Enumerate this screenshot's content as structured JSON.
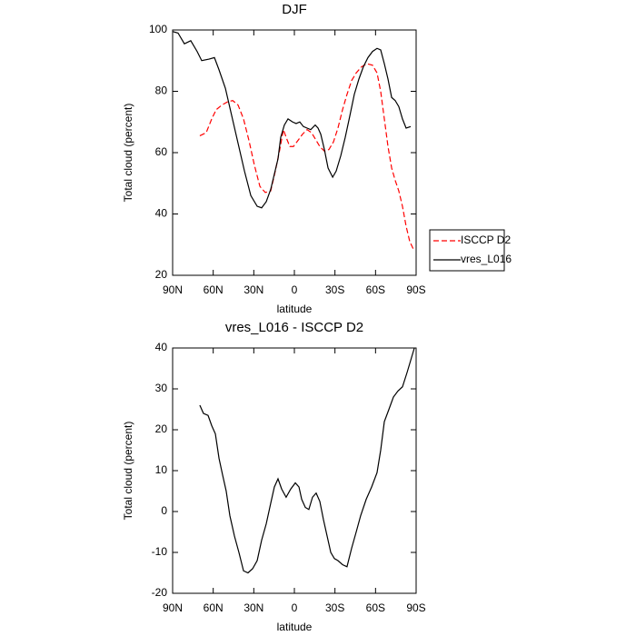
{
  "chart_data": [
    {
      "type": "line",
      "title": "DJF",
      "xlabel": "latitude",
      "ylabel": "Total cloud (percent)",
      "xlim": [
        90,
        -90
      ],
      "xticks": [
        {
          "value": 90,
          "label": "90N"
        },
        {
          "value": 60,
          "label": "60N"
        },
        {
          "value": 30,
          "label": "30N"
        },
        0,
        {
          "value": -30,
          "label": "30S"
        },
        {
          "value": -60,
          "label": "60S"
        },
        {
          "value": -90,
          "label": "90S"
        }
      ],
      "ylim": [
        20,
        100
      ],
      "yticks": [
        20,
        40,
        60,
        80,
        100
      ],
      "legend": "right",
      "series": [
        {
          "name": "ISCCP D2",
          "color": "#ff0000",
          "dashed": true,
          "x": [
            69.9,
            65.2,
            61.1,
            57.8,
            53.7,
            49.7,
            45.6,
            41.6,
            37.6,
            33.6,
            29.6,
            25.5,
            21.5,
            17.5,
            14.1,
            10.8,
            8.1,
            6.1,
            3.4,
            0.7,
            -2.7,
            -6,
            -9.4,
            -12.7,
            -16.1,
            -18.8,
            -22.2,
            -25.5,
            -28.9,
            -32.2,
            -35.6,
            -38.9,
            -42.3,
            -45.7,
            -49.7,
            -53.7,
            -57.8,
            -61.1,
            -63.8,
            -66.5,
            -69.2,
            -71.9,
            -74.5,
            -77.2,
            -79.9,
            -82.6,
            -85.3,
            -88
          ],
          "values": [
            65.5,
            66.5,
            71,
            74,
            75.5,
            76.5,
            77,
            75.5,
            71,
            64,
            56,
            49,
            47,
            47.5,
            54,
            61,
            67.5,
            65,
            62,
            62,
            64,
            66,
            67.5,
            66.5,
            64,
            62,
            60.5,
            61,
            63.5,
            68,
            74,
            79,
            83.5,
            86,
            88,
            89,
            88.5,
            86,
            80,
            71,
            62,
            55,
            51,
            47.5,
            42.5,
            36,
            31,
            28.5
          ]
        },
        {
          "name": "vres_L016",
          "color": "#000000",
          "dashed": false,
          "x": [
            90,
            86,
            81.3,
            76.6,
            71.9,
            68.5,
            63.1,
            59.1,
            55.7,
            51,
            46.3,
            41.6,
            36.9,
            32.2,
            27.5,
            24.2,
            20.8,
            17.5,
            14.8,
            12.1,
            10.1,
            7.4,
            4.7,
            1.3,
            -1.3,
            -4,
            -6.7,
            -9.4,
            -12.1,
            -15.4,
            -17.5,
            -19.5,
            -22.2,
            -24.9,
            -28.3,
            -30.9,
            -34.3,
            -37.6,
            -41,
            -44.3,
            -47.7,
            -51,
            -54.4,
            -57.8,
            -61.1,
            -63.8,
            -66.5,
            -69.2,
            -71.9,
            -74.5,
            -77.2,
            -79.9,
            -82.6,
            -86
          ],
          "values": [
            99.5,
            99,
            95.5,
            96.5,
            93,
            90,
            90.5,
            91,
            87,
            81,
            72,
            63,
            54,
            46,
            42.5,
            42,
            44,
            48,
            53,
            58,
            65,
            69,
            71,
            70,
            69.5,
            70,
            68.5,
            68,
            67.5,
            69,
            68,
            66,
            61,
            55,
            52,
            54,
            59,
            65,
            72,
            79,
            84,
            88,
            91,
            93,
            94,
            93.5,
            89,
            84,
            78,
            77,
            75,
            71,
            68,
            68.5
          ]
        }
      ]
    },
    {
      "type": "line",
      "title": "vres_L016 - ISCCP D2",
      "xlabel": "latitude",
      "ylabel": "Total cloud (percent)",
      "xlim": [
        90,
        -90
      ],
      "xticks": [
        {
          "value": 90,
          "label": "90N"
        },
        {
          "value": 60,
          "label": "60N"
        },
        {
          "value": 30,
          "label": "30N"
        },
        0,
        {
          "value": -30,
          "label": "30S"
        },
        {
          "value": -60,
          "label": "60S"
        },
        {
          "value": -90,
          "label": "90S"
        }
      ],
      "ylim": [
        -20,
        40
      ],
      "yticks": [
        -20,
        -10,
        0,
        10,
        20,
        30,
        40
      ],
      "series": [
        {
          "color": "#000000",
          "dashed": false,
          "x": [
            69.9,
            67.2,
            63.8,
            61.1,
            58.4,
            55.7,
            53.1,
            50.4,
            47.7,
            44.3,
            41,
            37.6,
            34.3,
            30.9,
            27.5,
            24.2,
            20.8,
            17.5,
            14.8,
            12.1,
            9.4,
            6.1,
            2.7,
            -0.7,
            -3.4,
            -5.4,
            -8.1,
            -10.7,
            -13.4,
            -16.1,
            -18.8,
            -21.5,
            -24.2,
            -26.9,
            -29.6,
            -32.2,
            -35.6,
            -38.9,
            -42.3,
            -45.7,
            -49,
            -53.1,
            -57.1,
            -61.1,
            -63.8,
            -66.5,
            -69.9,
            -73.2,
            -76.6,
            -79.9,
            -83.3,
            -86,
            -88.7
          ],
          "values": [
            26,
            24,
            23.5,
            21,
            19,
            13,
            9,
            5,
            -1,
            -6,
            -10,
            -14.5,
            -15,
            -14,
            -12,
            -7,
            -3,
            2,
            6,
            8,
            5.5,
            3.5,
            5.5,
            7,
            6,
            3,
            1,
            0.5,
            3.5,
            4.5,
            2.5,
            -2,
            -6,
            -10,
            -11.5,
            -12,
            -13,
            -13.5,
            -9,
            -5,
            -1,
            3,
            6,
            9.5,
            15,
            22,
            25,
            28,
            29.5,
            30.5,
            34,
            37,
            40
          ]
        }
      ]
    }
  ]
}
